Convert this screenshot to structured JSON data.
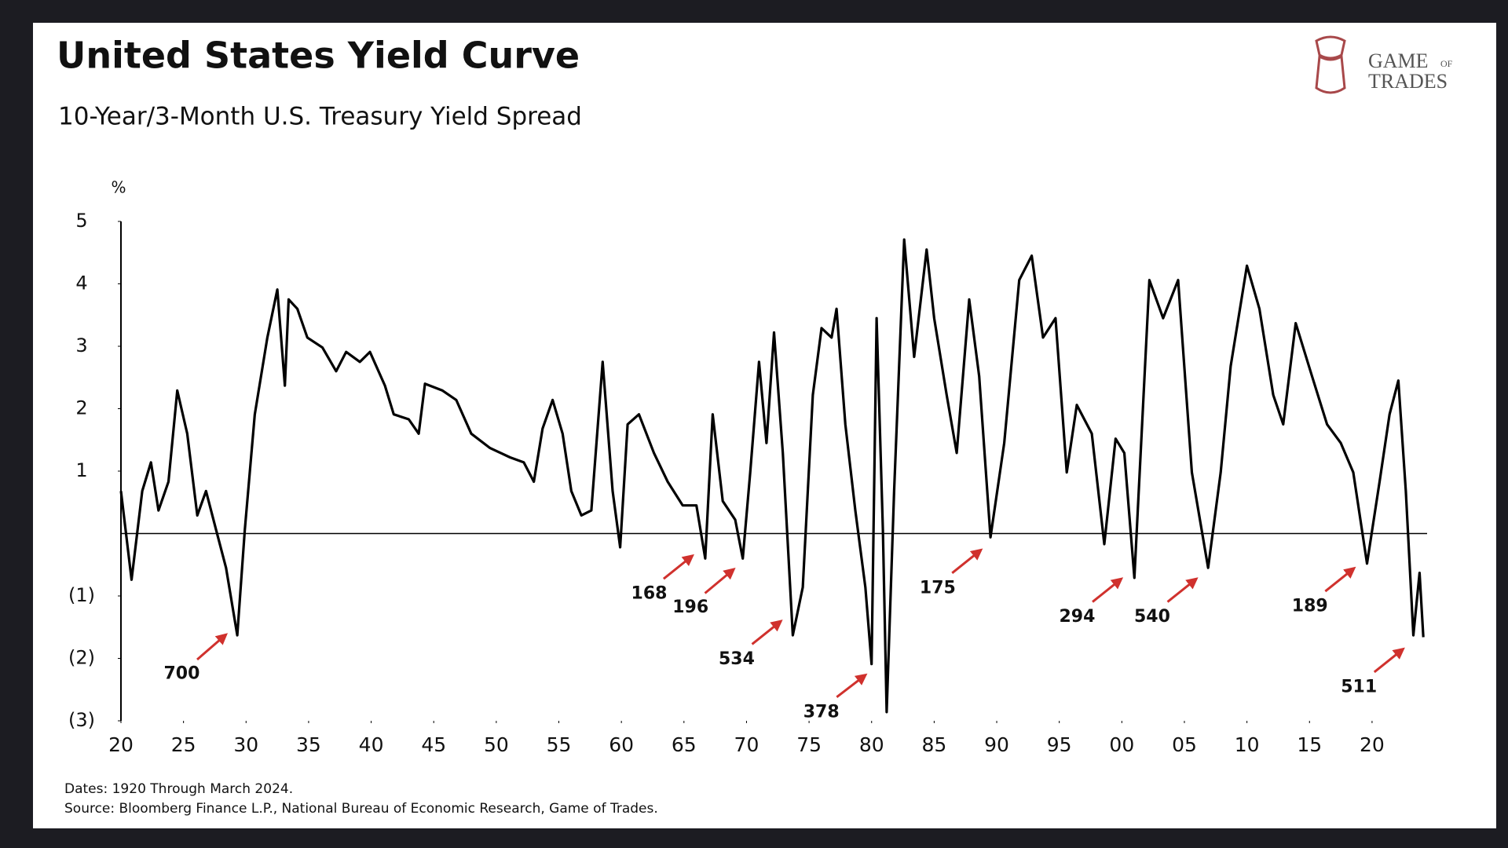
{
  "chart_data": {
    "type": "line",
    "title": "United States Yield Curve",
    "subtitle": "10-Year/3-Month U.S. Treasury Yield Spread",
    "y_unit_label": "%",
    "notes": [
      "Dates: 1920 Through March 2024.",
      "Source: Bloomberg Finance L.P., National Bureau of Economic Research, Game of Trades."
    ],
    "logo": [
      "Game",
      "of",
      "Trades"
    ],
    "xlim": [
      1920,
      2024.4
    ],
    "xticks": [
      {
        "value": 1920,
        "label": "20"
      },
      {
        "value": 1925,
        "label": "25"
      },
      {
        "value": 1930,
        "label": "30"
      },
      {
        "value": 1935,
        "label": "35"
      },
      {
        "value": 1940,
        "label": "40"
      },
      {
        "value": 1945,
        "label": "45"
      },
      {
        "value": 1950,
        "label": "50"
      },
      {
        "value": 1955,
        "label": "55"
      },
      {
        "value": 1960,
        "label": "60"
      },
      {
        "value": 1965,
        "label": "65"
      },
      {
        "value": 1970,
        "label": "70"
      },
      {
        "value": 1975,
        "label": "75"
      },
      {
        "value": 1980,
        "label": "80"
      },
      {
        "value": 1985,
        "label": "85"
      },
      {
        "value": 1990,
        "label": "90"
      },
      {
        "value": 1995,
        "label": "95"
      },
      {
        "value": 2000,
        "label": "00"
      },
      {
        "value": 2005,
        "label": "05"
      },
      {
        "value": 2010,
        "label": "10"
      },
      {
        "value": 2015,
        "label": "15"
      },
      {
        "value": 2020,
        "label": "20"
      }
    ],
    "ylim": [
      -3,
      5
    ],
    "yticks": [
      5,
      4,
      3,
      2,
      1,
      {
        "value": -1,
        "label": "(1)"
      },
      {
        "value": -2,
        "label": "(2)"
      },
      {
        "value": -3,
        "label": "(3)"
      }
    ],
    "zero_line": 0,
    "annotations": [
      "700",
      "168",
      "196",
      "534",
      "378",
      "175",
      "294",
      "540",
      "189",
      "511"
    ],
    "annotation_color": "#d0312d",
    "x": [
      1920.0,
      1920.85,
      1921.7,
      1922.4,
      1923.0,
      1923.8,
      1924.5,
      1925.3,
      1926.1,
      1926.8,
      1927.6,
      1928.4,
      1929.3,
      1929.9,
      1930.7,
      1931.7,
      1932.5,
      1933.1,
      1933.4,
      1934.1,
      1934.9,
      1936.1,
      1937.2,
      1938.0,
      1939.1,
      1939.9,
      1941.1,
      1941.8,
      1943.0,
      1943.8,
      1944.3,
      1945.7,
      1946.8,
      1948.0,
      1949.5,
      1951.1,
      1952.2,
      1953.0,
      1953.7,
      1954.5,
      1955.3,
      1956.0,
      1956.8,
      1957.6,
      1958.5,
      1959.3,
      1959.9,
      1960.5,
      1961.4,
      1962.6,
      1963.7,
      1964.9,
      1966.0,
      1966.7,
      1967.3,
      1968.1,
      1969.1,
      1969.7,
      1970.3,
      1971.0,
      1971.6,
      1972.2,
      1972.9,
      1973.7,
      1974.5,
      1975.3,
      1976.0,
      1976.8,
      1977.2,
      1977.9,
      1978.7,
      1979.5,
      1980.0,
      1980.4,
      1980.9,
      1981.2,
      1981.8,
      1982.6,
      1983.4,
      1984.4,
      1985.0,
      1986.0,
      1986.8,
      1987.8,
      1988.6,
      1989.5,
      1990.6,
      1991.8,
      1992.8,
      1993.7,
      1994.7,
      1995.6,
      1996.4,
      1997.6,
      1998.6,
      1999.5,
      2000.2,
      2001.0,
      2002.2,
      2003.3,
      2004.5,
      2005.6,
      2006.9,
      2007.9,
      2008.7,
      2010.0,
      2011.0,
      2012.1,
      2012.9,
      2013.9,
      2015.2,
      2016.4,
      2017.5,
      2018.5,
      2019.6,
      2020.6,
      2021.4,
      2022.1,
      2022.7,
      2023.3,
      2023.8,
      2024.1
    ],
    "series": [
      {
        "name": "10Y-3M spread",
        "color": "#000000",
        "values": [
          0.68,
          -0.74,
          0.68,
          1.14,
          0.37,
          0.83,
          2.29,
          1.6,
          0.29,
          0.68,
          0.06,
          -0.55,
          -1.63,
          0.06,
          1.91,
          3.14,
          3.91,
          2.37,
          3.75,
          3.6,
          3.14,
          2.98,
          2.6,
          2.91,
          2.75,
          2.91,
          2.37,
          1.91,
          1.83,
          1.6,
          2.4,
          2.29,
          2.14,
          1.6,
          1.37,
          1.22,
          1.14,
          0.83,
          1.68,
          2.14,
          1.6,
          0.68,
          0.29,
          0.37,
          2.75,
          0.68,
          -0.22,
          1.75,
          1.91,
          1.29,
          0.83,
          0.45,
          0.45,
          -0.4,
          1.91,
          0.52,
          0.22,
          -0.4,
          0.98,
          2.75,
          1.45,
          3.22,
          1.29,
          -1.63,
          -0.86,
          2.22,
          3.29,
          3.14,
          3.6,
          1.75,
          0.37,
          -0.86,
          -2.09,
          3.45,
          0.06,
          -2.86,
          0.68,
          4.71,
          2.83,
          4.55,
          3.45,
          2.22,
          1.29,
          3.75,
          2.52,
          -0.06,
          1.45,
          4.06,
          4.45,
          3.14,
          3.45,
          0.98,
          2.06,
          1.6,
          -0.17,
          1.52,
          1.29,
          -0.71,
          4.06,
          3.45,
          4.06,
          0.98,
          -0.55,
          0.98,
          2.68,
          4.29,
          3.6,
          2.22,
          1.75,
          3.37,
          2.52,
          1.75,
          1.45,
          0.98,
          -0.48,
          0.83,
          1.91,
          2.45,
          0.68,
          -1.63,
          -0.63,
          -1.66
        ]
      }
    ]
  }
}
